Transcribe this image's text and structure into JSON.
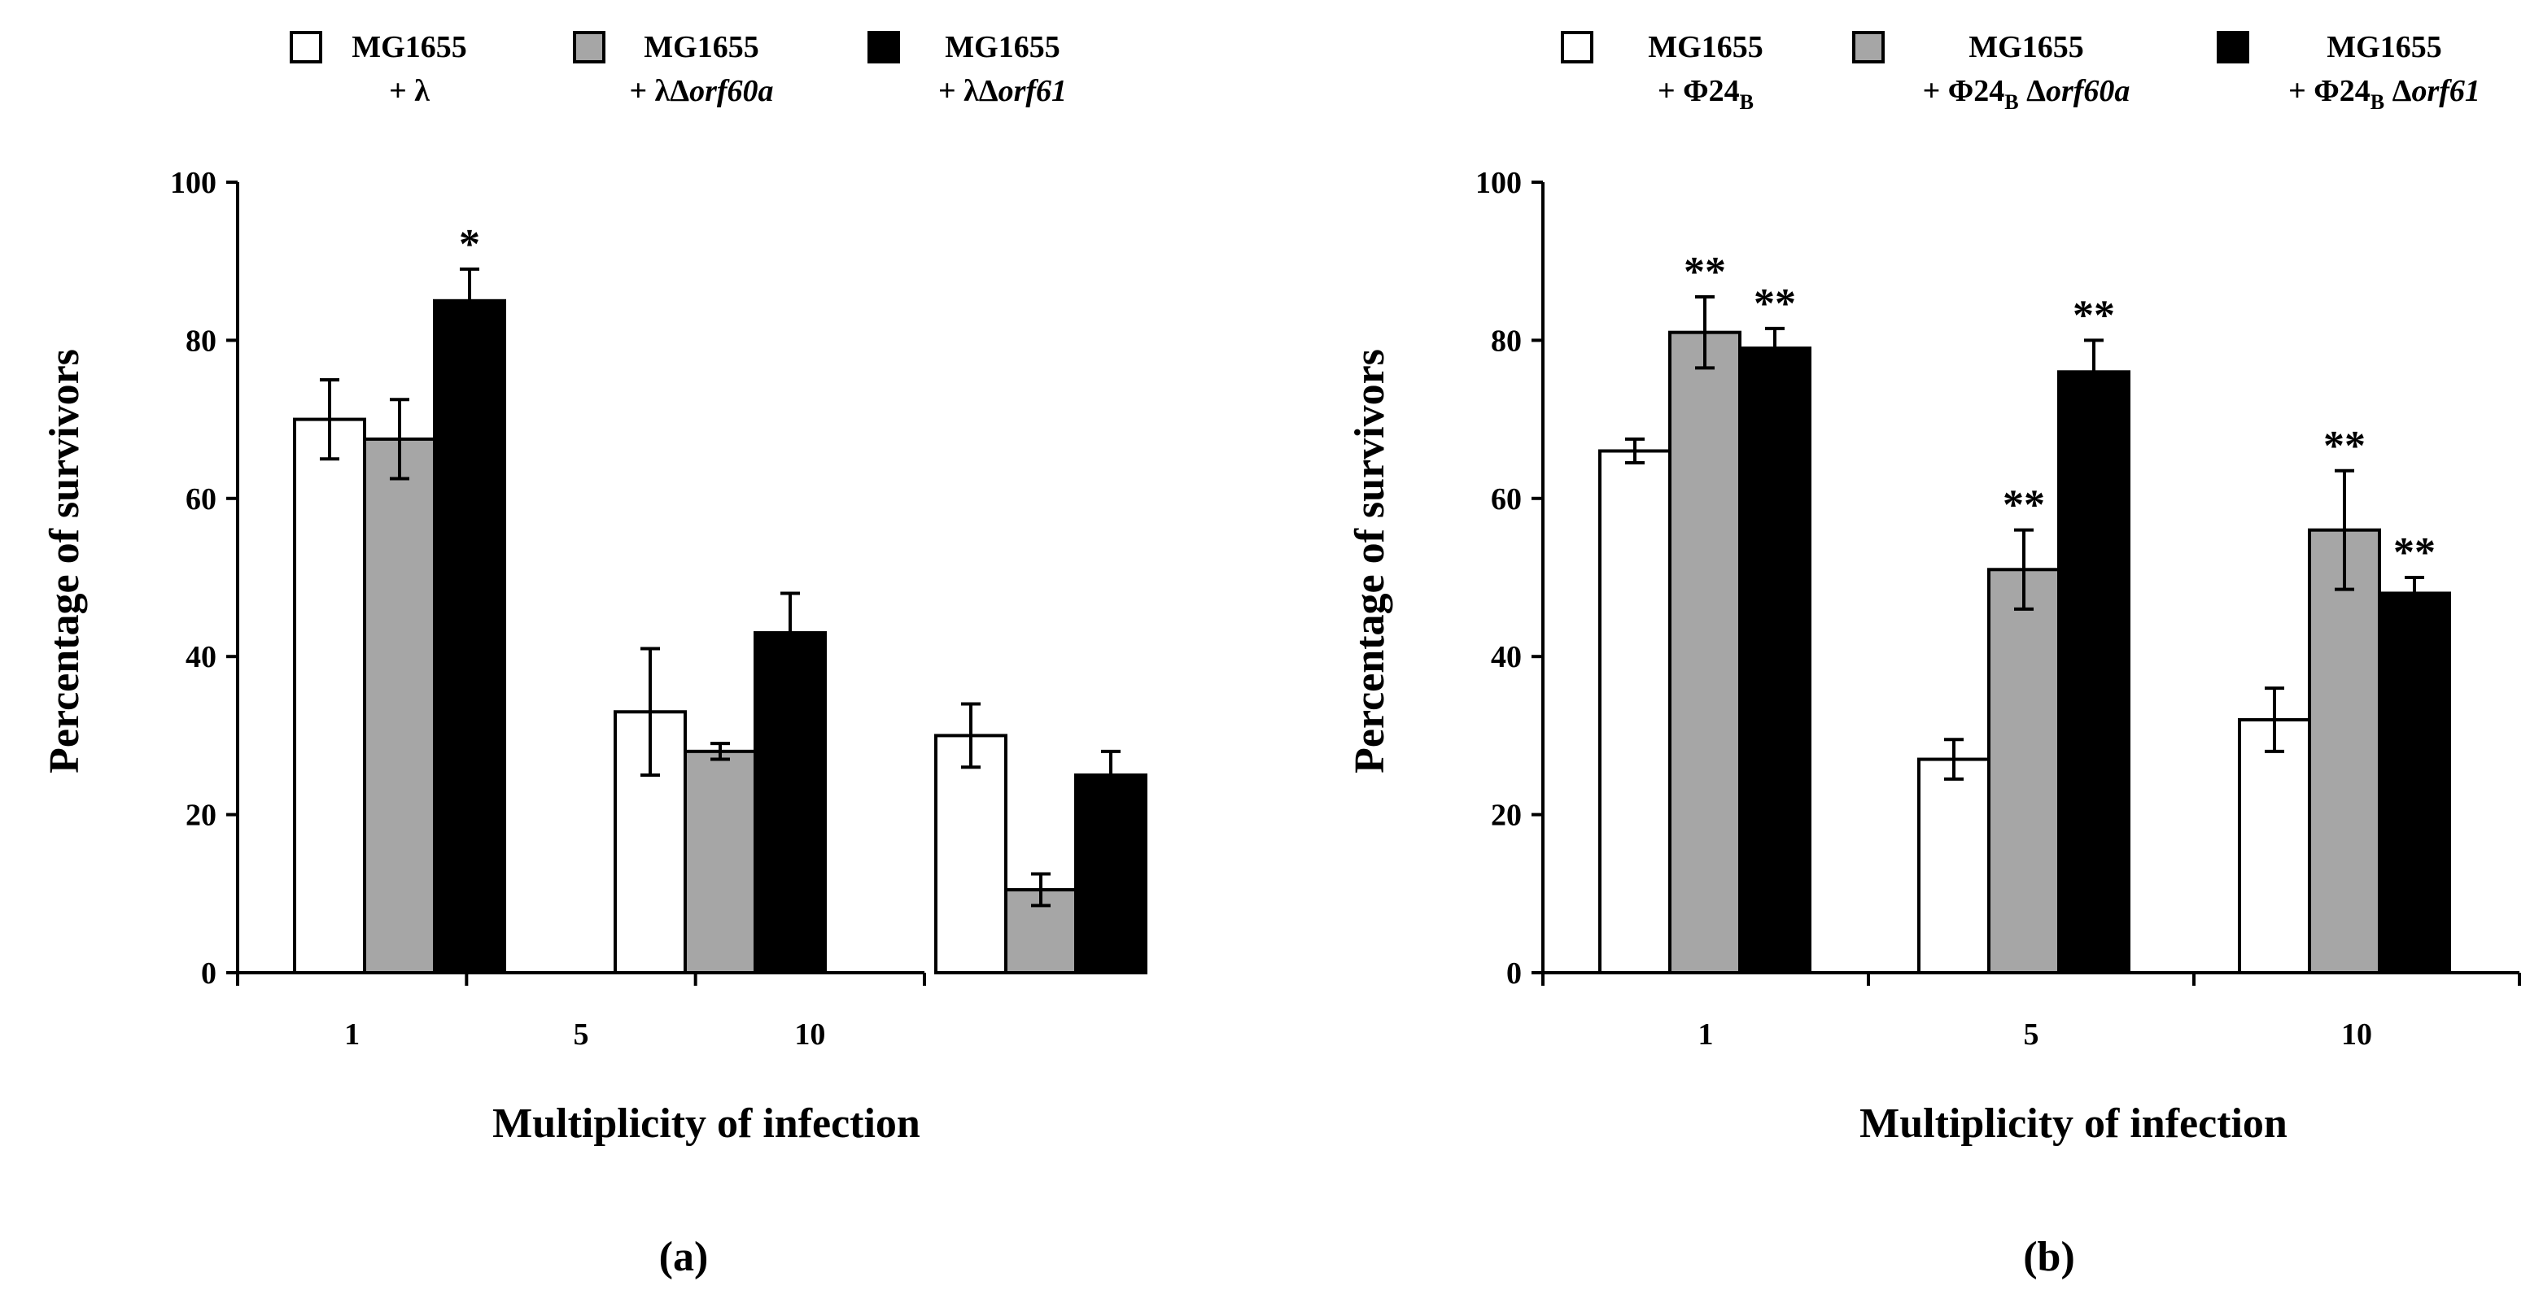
{
  "colors": {
    "white": "#ffffff",
    "gray": "#a6a6a6",
    "black": "#000000"
  },
  "chart_data": [
    {
      "type": "bar",
      "panel_label": "(a)",
      "xlabel": "Multiplicity of infection",
      "ylabel": "Percentage of survivors",
      "ylim": [
        0,
        100
      ],
      "yticks": [
        "0",
        "20",
        "40",
        "60",
        "80",
        "100"
      ],
      "categories": [
        "1",
        "5",
        "10"
      ],
      "legend": [
        {
          "line1": "MG1655",
          "line2": "+ λ",
          "color": "white"
        },
        {
          "line1": "MG1655",
          "line2_a": "+ λΔ",
          "line2_b": "orf60a",
          "color": "gray"
        },
        {
          "line1": "MG1655",
          "line2_a": "+ λΔ",
          "line2_b": "orf61",
          "color": "black"
        }
      ],
      "series": [
        {
          "name": "MG1655 + λ",
          "color": "white",
          "values": [
            70,
            33,
            30
          ],
          "errors": [
            5,
            8,
            4
          ],
          "marks": [
            "",
            "",
            ""
          ]
        },
        {
          "name": "MG1655 + λΔorf60a",
          "color": "gray",
          "values": [
            67.5,
            28,
            10.5
          ],
          "errors": [
            5,
            1,
            2
          ],
          "marks": [
            "",
            "",
            ""
          ]
        },
        {
          "name": "MG1655 + λΔorf61",
          "color": "black",
          "values": [
            85,
            43,
            25
          ],
          "errors": [
            4,
            5,
            3
          ],
          "marks": [
            "*",
            "",
            ""
          ]
        }
      ]
    },
    {
      "type": "bar",
      "panel_label": "(b)",
      "xlabel": "Multiplicity of infection",
      "ylabel": "Percentage of survivors",
      "ylim": [
        0,
        100
      ],
      "yticks": [
        "0",
        "20",
        "40",
        "60",
        "80",
        "100"
      ],
      "categories": [
        "1",
        "5",
        "10"
      ],
      "legend": [
        {
          "line1": "MG1655",
          "line2": "+ Φ24",
          "sub": "B",
          "color": "white"
        },
        {
          "line1": "MG1655",
          "line2": "+ Φ24",
          "sub": "B",
          "line2_c": " Δ",
          "line2_b": "orf60a",
          "color": "gray"
        },
        {
          "line1": "MG1655",
          "line2": "+ Φ24",
          "sub": "B",
          "line2_c": " Δ",
          "line2_b": "orf61",
          "color": "black"
        }
      ],
      "series": [
        {
          "name": "MG1655 + Φ24B",
          "color": "white",
          "values": [
            66,
            27,
            32
          ],
          "errors": [
            1.5,
            2.5,
            4
          ],
          "marks": [
            "",
            "",
            ""
          ]
        },
        {
          "name": "MG1655 + Φ24B Δorf60a",
          "color": "gray",
          "values": [
            81,
            51,
            56
          ],
          "errors": [
            4.5,
            5,
            7.5
          ],
          "marks": [
            "**",
            "**",
            "**"
          ]
        },
        {
          "name": "MG1655 + Φ24B Δorf61",
          "color": "black",
          "values": [
            79,
            76,
            48
          ],
          "errors": [
            2.5,
            4,
            2
          ],
          "marks": [
            "**",
            "**",
            "**"
          ]
        }
      ]
    }
  ]
}
